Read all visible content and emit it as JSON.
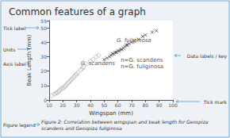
{
  "chart_data": {
    "type": "scatter",
    "title": "Common features of a graph",
    "xlabel": "Wingspan (mm)",
    "ylabel": "Beak Length (mm)",
    "xlim": [
      10,
      100
    ],
    "ylim": [
      0,
      55
    ],
    "xticks": [
      10,
      20,
      30,
      40,
      50,
      60,
      70,
      80,
      90,
      100
    ],
    "yticks": [
      0,
      10,
      20,
      30,
      40,
      50
    ],
    "grid": false,
    "series": [
      {
        "color": "#aaaaaa",
        "marker": "circle",
        "x": [
          12,
          14,
          15,
          16,
          17,
          18,
          19,
          20,
          21,
          22,
          23,
          24,
          25,
          26,
          27,
          28,
          29,
          30,
          31,
          33,
          34,
          35,
          37,
          40,
          42,
          44,
          46
        ],
        "values": [
          3,
          4,
          5,
          5,
          6,
          7,
          8,
          8,
          9,
          10,
          11,
          12,
          13,
          14,
          15,
          16,
          17,
          18,
          19,
          21,
          22,
          23,
          25,
          27,
          28,
          30,
          31
        ]
      },
      {
        "color": "#444444",
        "marker": "cross",
        "x": [
          50,
          52,
          54,
          55,
          56,
          57,
          58,
          59,
          60,
          61,
          62,
          63,
          64,
          65,
          66,
          67,
          68,
          70,
          72,
          75,
          78,
          80,
          85,
          88
        ],
        "values": [
          28,
          29,
          30,
          31,
          32,
          32,
          33,
          33,
          34,
          34,
          35,
          35,
          36,
          37,
          38,
          38,
          39,
          40,
          41,
          42,
          44,
          45,
          47,
          48
        ]
      }
    ],
    "annotations": [
      {
        "text": "G. scandens",
        "x": 33,
        "y": 23
      },
      {
        "text": "G. fuliginosa",
        "x": 59,
        "y": 39
      },
      {
        "text": "n=G. scandens\nn=G. fuliginosa",
        "x": 62,
        "y": 21
      },
      {
        "text": "Tick label"
      },
      {
        "text": "Units"
      },
      {
        "text": "Axis label"
      },
      {
        "text": "Data labels / key"
      },
      {
        "text": "Tick mark"
      },
      {
        "text": "Figure legend"
      }
    ],
    "caption": "Figure 2: Correlation between wingspan and beak length for Geospiza\nscandens and Geospiza fuliginosa"
  }
}
